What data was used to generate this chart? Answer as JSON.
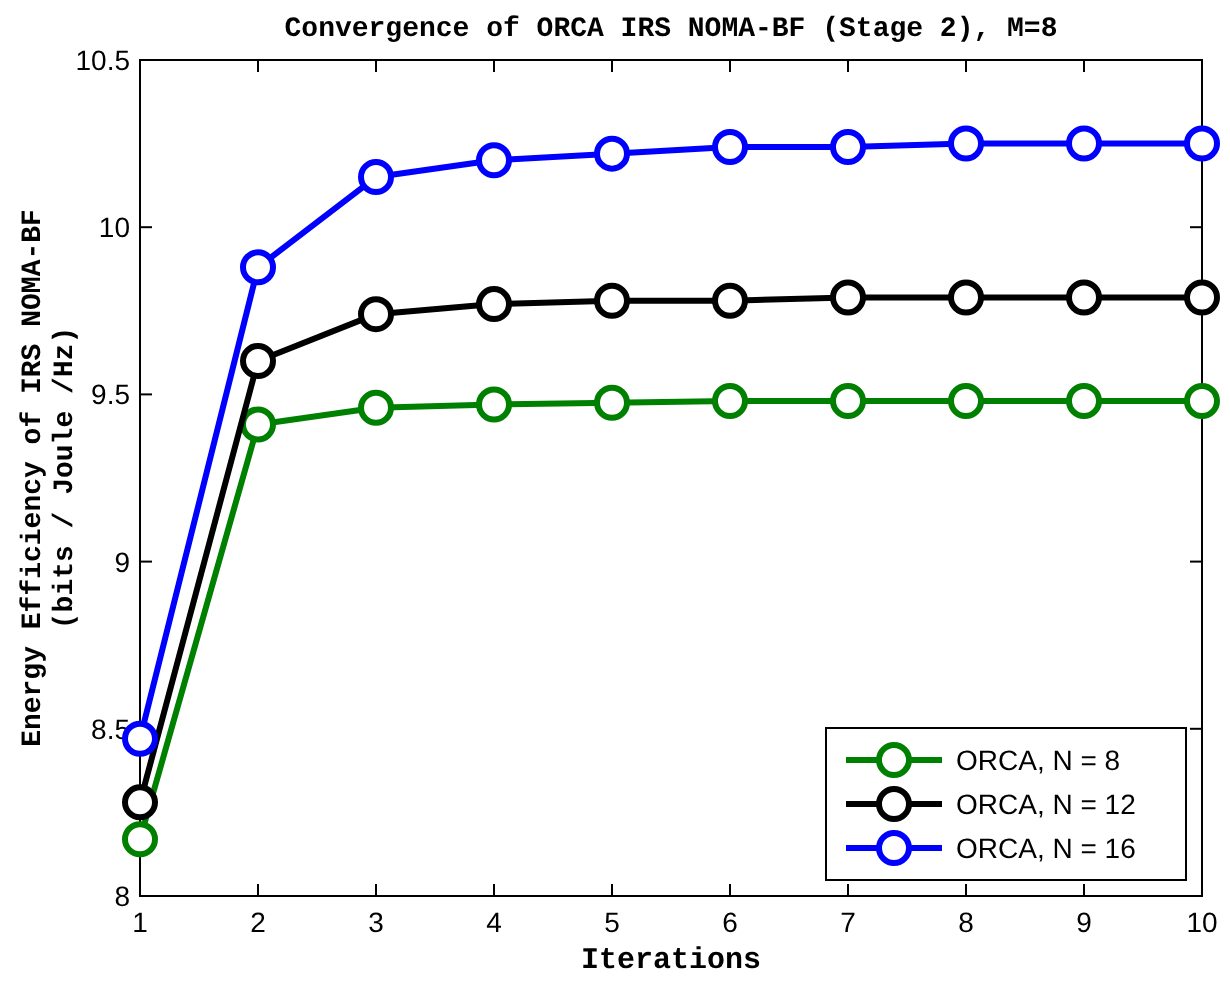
{
  "chart_data": {
    "type": "line",
    "title": "Convergence of ORCA IRS NOMA-BF (Stage 2), M=8",
    "xlabel": "Iterations",
    "ylabel": "Energy Efficiency of IRS NOMA-BF\n(bits / Joule /Hz)",
    "x": [
      1,
      2,
      3,
      4,
      5,
      6,
      7,
      8,
      9,
      10
    ],
    "xlim": [
      1,
      10
    ],
    "xticks": [
      1,
      2,
      3,
      4,
      5,
      6,
      7,
      8,
      9,
      10
    ],
    "ylim": [
      8,
      10.5
    ],
    "yticks": [
      8,
      8.5,
      9,
      9.5,
      10,
      10.5
    ],
    "marker": "circle",
    "legend": "bottom right",
    "grid": false,
    "series": [
      {
        "name": "ORCA, N = 8",
        "color": "#008000",
        "values": [
          8.17,
          9.41,
          9.46,
          9.47,
          9.475,
          9.48,
          9.48,
          9.48,
          9.48,
          9.48
        ]
      },
      {
        "name": "ORCA, N = 12",
        "color": "#000000",
        "values": [
          8.28,
          9.6,
          9.74,
          9.77,
          9.78,
          9.78,
          9.79,
          9.79,
          9.79,
          9.79
        ]
      },
      {
        "name": "ORCA, N = 16",
        "color": "#0000ff",
        "values": [
          8.47,
          9.88,
          10.15,
          10.2,
          10.22,
          10.24,
          10.24,
          10.25,
          10.25,
          10.25
        ]
      }
    ]
  }
}
